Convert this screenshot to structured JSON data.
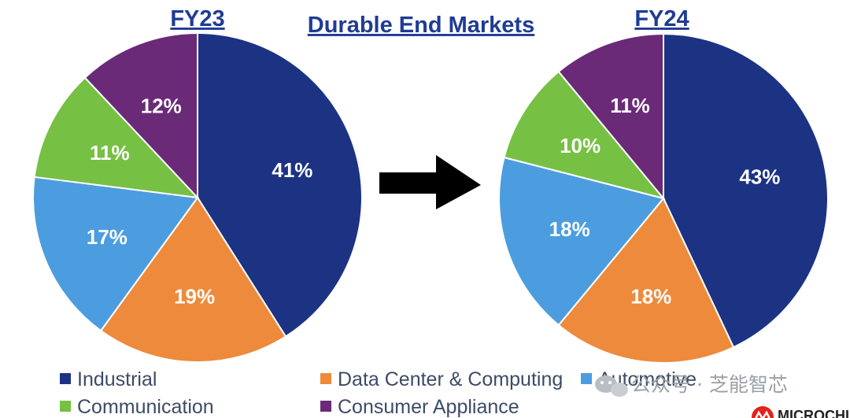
{
  "chart_data": {
    "type": "pie",
    "title": "Durable End Markets",
    "pies": [
      {
        "name": "FY23",
        "slices": [
          {
            "label": "Industrial",
            "value": 41,
            "text": "41%",
            "color": "#1c3384"
          },
          {
            "label": "Data Center & Computing",
            "value": 19,
            "text": "19%",
            "color": "#ee8a3c"
          },
          {
            "label": "Automotive",
            "value": 17,
            "text": "17%",
            "color": "#4c9de0"
          },
          {
            "label": "Communication",
            "value": 11,
            "text": "11%",
            "color": "#76c043"
          },
          {
            "label": "Consumer Appliance",
            "value": 12,
            "text": "12%",
            "color": "#6a2a78"
          }
        ]
      },
      {
        "name": "FY24",
        "slices": [
          {
            "label": "Industrial",
            "value": 43,
            "text": "43%",
            "color": "#1c3384"
          },
          {
            "label": "Data Center & Computing",
            "value": 18,
            "text": "18%",
            "color": "#ee8a3c"
          },
          {
            "label": "Automotive",
            "value": 18,
            "text": "18%",
            "color": "#4c9de0"
          },
          {
            "label": "Communication",
            "value": 10,
            "text": "10%",
            "color": "#76c043"
          },
          {
            "label": "Consumer Appliance",
            "value": 11,
            "text": "11%",
            "color": "#6a2a78"
          }
        ]
      }
    ],
    "legend": [
      {
        "label": "Industrial",
        "color": "#1c3384"
      },
      {
        "label": "Data Center & Computing",
        "color": "#ee8a3c"
      },
      {
        "label": "Automotive",
        "color": "#4c9de0"
      },
      {
        "label": "Communication",
        "color": "#76c043"
      },
      {
        "label": "Consumer Appliance",
        "color": "#6a2a78"
      }
    ],
    "legend_position": "bottom"
  },
  "watermark": {
    "text": "公众号 · 芝能智芯",
    "icon": "wechat-icon"
  },
  "logo": {
    "text": "MICROCHIP",
    "icon": "microchip-logo-icon"
  },
  "arrow": {
    "icon": "right-arrow-icon",
    "color": "#000000"
  }
}
